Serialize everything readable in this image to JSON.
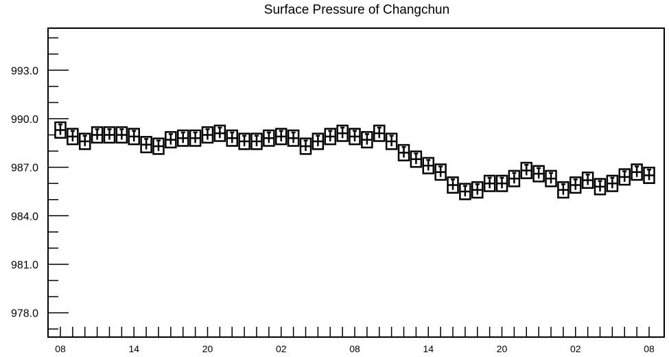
{
  "chart_data": {
    "type": "boxplot",
    "title": "Surface Pressure of Changchun",
    "xlabel": "",
    "ylabel": "",
    "ylim": [
      976.5,
      995.6
    ],
    "y_ticks": [
      "978.0",
      "981.0",
      "984.0",
      "987.0",
      "990.0",
      "993.0"
    ],
    "y_tick_values": [
      978.0,
      981.0,
      984.0,
      987.0,
      990.0,
      993.0
    ],
    "x_tick_labels": [
      "08",
      "14",
      "20",
      "02",
      "08",
      "14",
      "20",
      "02",
      "08"
    ],
    "x_tick_index": [
      0,
      6,
      12,
      18,
      24,
      30,
      36,
      42,
      48
    ],
    "x_count": 49,
    "grid": false,
    "series": [
      {
        "values": [
          989.3,
          988.9,
          988.6,
          989.0,
          989.0,
          989.0,
          988.9,
          988.4,
          988.3,
          988.7,
          988.8,
          988.8,
          989.0,
          989.1,
          988.8,
          988.6,
          988.6,
          988.8,
          988.9,
          988.8,
          988.3,
          988.6,
          988.9,
          989.1,
          988.9,
          988.7,
          989.1,
          988.6,
          987.9,
          987.5,
          987.1,
          986.7,
          985.9,
          985.5,
          985.6,
          986.0,
          986.0,
          986.3,
          986.8,
          986.6,
          986.3,
          985.6,
          985.9,
          986.2,
          985.8,
          986.0,
          986.4,
          986.7,
          986.5
        ],
        "box_half": 0.48,
        "whisker_low": 0.3,
        "whisker_high": 0.35
      }
    ]
  }
}
